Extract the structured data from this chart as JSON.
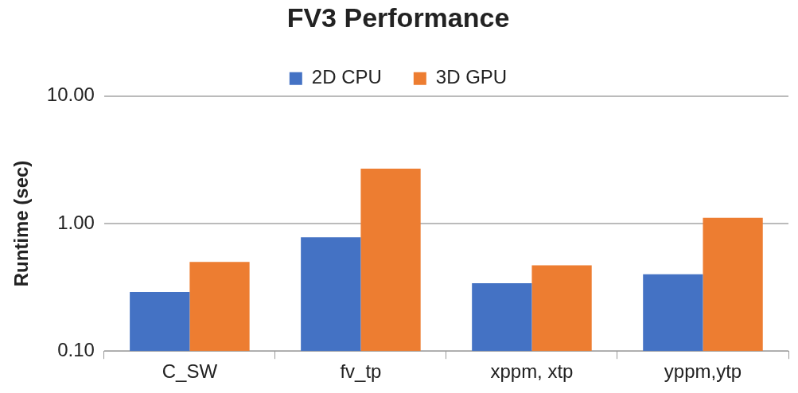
{
  "chart_data": {
    "type": "bar",
    "title": "FV3 Performance",
    "ylabel": "Runtime (sec)",
    "categories": [
      "C_SW",
      "fv_tp",
      "xppm, xtp",
      "yppm,ytp"
    ],
    "series": [
      {
        "name": "2D CPU",
        "color": "#4472c4",
        "values": [
          0.29,
          0.78,
          0.34,
          0.4
        ]
      },
      {
        "name": "3D GPU",
        "color": "#ed7d31",
        "values": [
          0.5,
          2.7,
          0.47,
          1.11
        ]
      }
    ],
    "log": "y",
    "ylim": [
      0.1,
      10
    ],
    "yticks": [
      {
        "value": 0.1,
        "label": "0.10"
      },
      {
        "value": 1,
        "label": "1.00"
      },
      {
        "value": 10,
        "label": "10.00"
      }
    ],
    "grid": "y",
    "legend": "top"
  }
}
